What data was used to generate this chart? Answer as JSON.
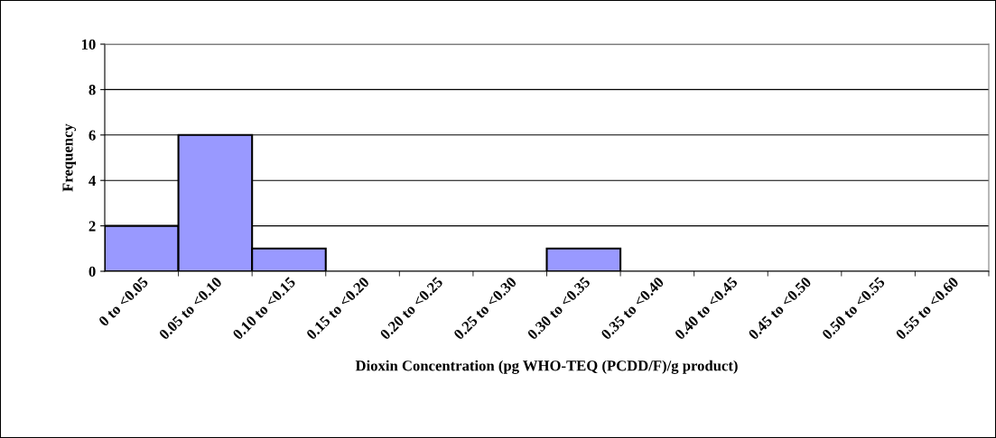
{
  "chart_data": {
    "type": "bar",
    "categories": [
      "0 to <0.05",
      "0.05 to <0.10",
      "0.10 to <0.15",
      "0.15 to <0.20",
      "0.20 to <0.25",
      "0.25 to <0.30",
      "0.30 to <0.35",
      "0.35 to <0.40",
      "0.40 to <0.45",
      "0.45 to <0.50",
      "0.50 to <0.55",
      "0.55 to <0.60"
    ],
    "values": [
      2,
      6,
      1,
      0,
      0,
      0,
      1,
      0,
      0,
      0,
      0,
      0
    ],
    "color": "#9999ff",
    "xlabel": "Dioxin Concentration (pg WHO-TEQ (PCDD/F)/g product)",
    "ylabel": "Frequency",
    "ylim": [
      0,
      10
    ],
    "yticks": [
      0,
      2,
      4,
      6,
      8,
      10
    ],
    "grid": "y",
    "legend": false
  }
}
